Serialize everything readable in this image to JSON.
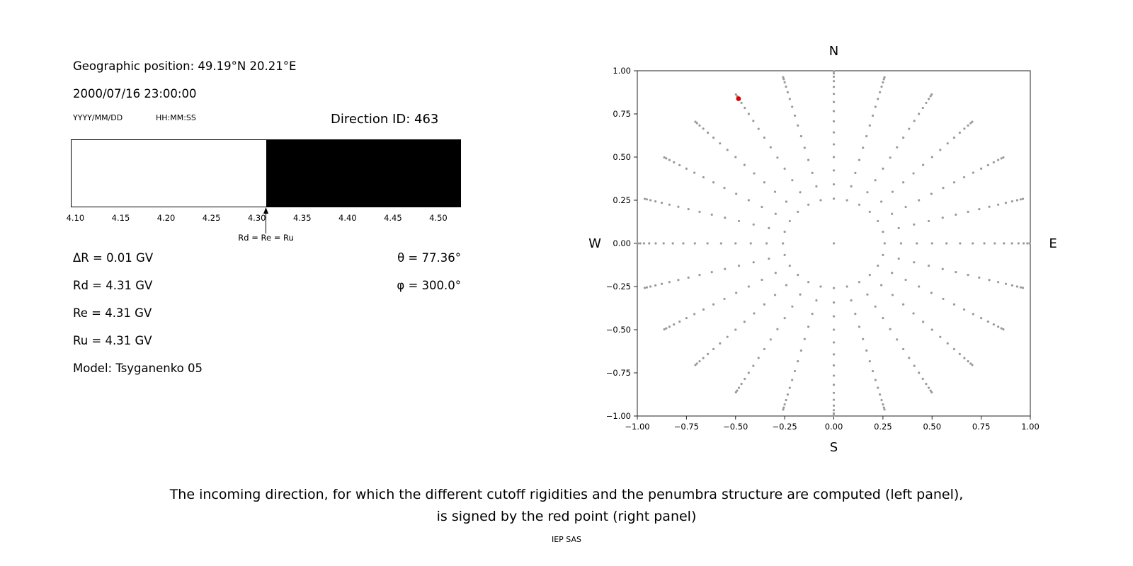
{
  "left_panel": {
    "geo_position": "Geographic position: 49.19°N 20.21°E",
    "datetime": "2000/07/16 23:00:00",
    "date_format_label": "YYYY/MM/DD",
    "time_format_label": "HH:MM:SS",
    "direction_id_label": "Direction ID: 463",
    "delta_r": "ΔR = 0.01 GV",
    "rd": "Rd = 4.31 GV",
    "re": "Re = 4.31 GV",
    "ru": "Ru = 4.31 GV",
    "model": "Model: Tsyganenko 05",
    "theta": "θ = 77.36°",
    "phi": "φ = 300.0°"
  },
  "chart_data": [
    {
      "type": "bar",
      "name": "penumbra-structure",
      "description": "Penumbra structure along the rigidity axis; white = allowed, black = forbidden",
      "x_range": [
        4.095,
        4.525
      ],
      "x_unit": "GV",
      "ticks": [
        "4.10",
        "4.15",
        "4.20",
        "4.25",
        "4.30",
        "4.35",
        "4.40",
        "4.45",
        "4.50"
      ],
      "segments": [
        {
          "from": 4.095,
          "to": 4.31,
          "color": "#ffffff",
          "meaning": "allowed"
        },
        {
          "from": 4.31,
          "to": 4.525,
          "color": "#000000",
          "meaning": "forbidden"
        }
      ],
      "marker": {
        "x": 4.31,
        "label": "Rd = Re = Ru"
      }
    },
    {
      "type": "scatter",
      "name": "incoming-directions",
      "xlim": [
        -1,
        1
      ],
      "ylim": [
        -1,
        1
      ],
      "x_ticks": [
        {
          "v": -1.0,
          "label": "−1.00"
        },
        {
          "v": -0.75,
          "label": "−0.75"
        },
        {
          "v": -0.5,
          "label": "−0.50"
        },
        {
          "v": -0.25,
          "label": "−0.25"
        },
        {
          "v": 0.0,
          "label": "0.00"
        },
        {
          "v": 0.25,
          "label": "0.25"
        },
        {
          "v": 0.5,
          "label": "0.50"
        },
        {
          "v": 0.75,
          "label": "0.75"
        },
        {
          "v": 1.0,
          "label": "1.00"
        }
      ],
      "y_ticks": [
        {
          "v": -1.0,
          "label": "−1.00"
        },
        {
          "v": -0.75,
          "label": "−0.75"
        },
        {
          "v": -0.5,
          "label": "−0.50"
        },
        {
          "v": -0.25,
          "label": "−0.25"
        },
        {
          "v": 0.0,
          "label": "0.00"
        },
        {
          "v": 0.25,
          "label": "0.25"
        },
        {
          "v": 0.5,
          "label": "0.50"
        },
        {
          "v": 0.75,
          "label": "0.75"
        },
        {
          "v": 1.0,
          "label": "1.00"
        }
      ],
      "compass_labels": {
        "top": "N",
        "bottom": "S",
        "left": "W",
        "right": "E"
      },
      "grid": false,
      "point_color": "#9a9a9a",
      "spokes": {
        "azimuth_start_deg": 0,
        "azimuth_step_deg": 15,
        "azimuth_count": 24,
        "zenith_start_deg": 15,
        "zenith_step_deg": 5,
        "zenith_count": 15,
        "radius_rule": "r = sin(zenith)"
      },
      "center_point": [
        0,
        0
      ],
      "red_point": {
        "x": -0.485,
        "y": 0.838,
        "color": "#dd0000"
      }
    }
  ],
  "caption": {
    "line1": "The incoming direction, for which the different cutoff rigidities and the penumbra structure are computed (left panel),",
    "line2": "is signed by the red point (right panel)"
  },
  "footer": "IEP SAS"
}
